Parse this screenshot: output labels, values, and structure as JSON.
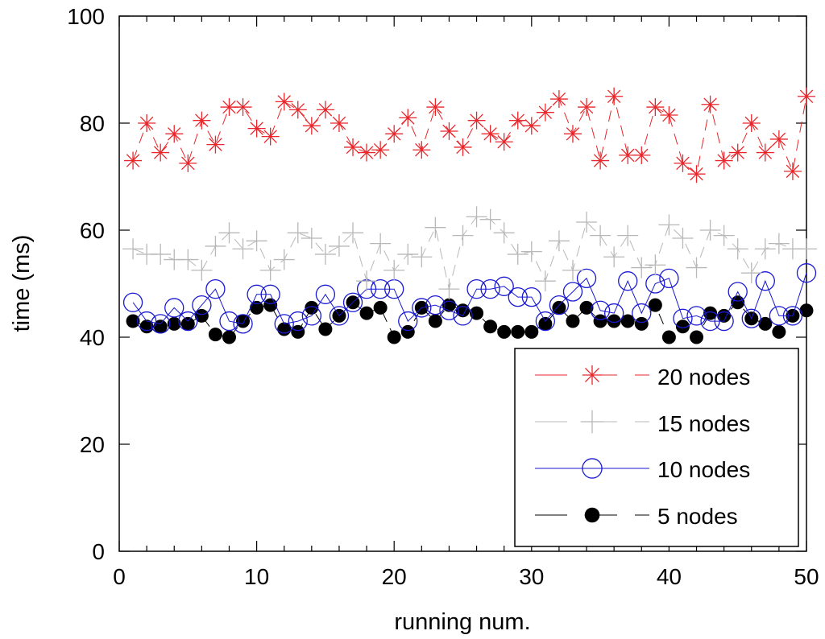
{
  "chart_data": {
    "type": "line",
    "title": "",
    "xlabel": "running num.",
    "ylabel": "time (ms)",
    "xlim": [
      0,
      50
    ],
    "ylim": [
      0,
      100
    ],
    "xticks": [
      0,
      10,
      20,
      30,
      40,
      50
    ],
    "yticks": [
      0,
      20,
      40,
      60,
      80,
      100
    ],
    "x_tick_labels": [
      "0",
      "10",
      "20",
      "30",
      "40",
      "50"
    ],
    "y_tick_labels": [
      "0",
      "20",
      "40",
      "60",
      "80",
      "100"
    ],
    "grid": false,
    "legend_position": "bottom-right",
    "x": [
      1,
      2,
      3,
      4,
      5,
      6,
      7,
      8,
      9,
      10,
      11,
      12,
      13,
      14,
      15,
      16,
      17,
      18,
      19,
      20,
      21,
      22,
      23,
      24,
      25,
      26,
      27,
      28,
      29,
      30,
      31,
      32,
      33,
      34,
      35,
      36,
      37,
      38,
      39,
      40,
      41,
      42,
      43,
      44,
      45,
      46,
      47,
      48,
      49,
      50
    ],
    "series": [
      {
        "name": "20 nodes",
        "color": "#e8262b",
        "marker": "star",
        "line_style": "dashed",
        "values": [
          73,
          80,
          74.5,
          78,
          72.5,
          80.5,
          76,
          83,
          83,
          79,
          77.5,
          84,
          82.5,
          79.5,
          82.5,
          80,
          75.5,
          74.5,
          75,
          78,
          81,
          75,
          83,
          78.5,
          75.5,
          80.5,
          78,
          76.5,
          80.5,
          79.5,
          82,
          84.5,
          78,
          83,
          73,
          85,
          74,
          74,
          83,
          81.5,
          72.5,
          70.5,
          83.5,
          73,
          74.5,
          80,
          74.5,
          77,
          71,
          85
        ]
      },
      {
        "name": "15 nodes",
        "color": "#b8b8b8",
        "marker": "plus",
        "line_style": "dashed",
        "values": [
          56.5,
          55.5,
          55.5,
          54.5,
          54.5,
          52.5,
          57,
          59.5,
          56.5,
          58,
          52.5,
          54.5,
          59.5,
          58.5,
          55.5,
          57,
          59.5,
          50.5,
          57.5,
          52.5,
          55.5,
          55,
          60.5,
          49,
          59,
          62.5,
          62,
          59.5,
          55.5,
          56,
          50.5,
          58,
          52.5,
          61.5,
          59,
          55,
          59,
          53,
          53.5,
          61,
          58.5,
          53,
          60,
          59,
          56.5,
          52,
          56.5,
          57.5,
          56.5,
          56.5
        ]
      },
      {
        "name": "10 nodes",
        "color": "#1919d2",
        "marker": "circle",
        "line_style": "solid",
        "values": [
          46.5,
          43,
          42.5,
          45.5,
          43,
          46,
          49,
          43,
          42.5,
          48,
          48,
          42.5,
          43,
          44,
          48,
          44,
          46.5,
          49,
          49,
          49,
          43,
          45.5,
          46,
          45,
          44,
          49,
          49,
          49.5,
          47.5,
          47.5,
          43,
          46,
          48.5,
          51,
          45,
          44.5,
          50.5,
          44.5,
          50,
          51,
          43.5,
          44,
          43,
          43,
          48.5,
          43.5,
          50.5,
          44,
          44,
          52
        ]
      },
      {
        "name": "5 nodes",
        "color": "#000000",
        "marker": "filled-circle",
        "line_style": "dashed",
        "values": [
          43,
          42,
          42,
          42.5,
          42.5,
          44,
          40.5,
          40,
          43,
          45.5,
          46,
          41.5,
          41,
          45.5,
          41.5,
          44,
          46.5,
          44.5,
          45.5,
          40,
          41,
          45.5,
          43,
          46,
          45,
          44.5,
          42,
          41,
          41,
          41,
          42.5,
          45.5,
          43,
          45.5,
          43,
          43,
          43,
          42.5,
          46,
          40,
          42,
          40,
          44.5,
          44,
          46.5,
          43.5,
          42.5,
          41,
          44,
          45
        ]
      }
    ]
  }
}
